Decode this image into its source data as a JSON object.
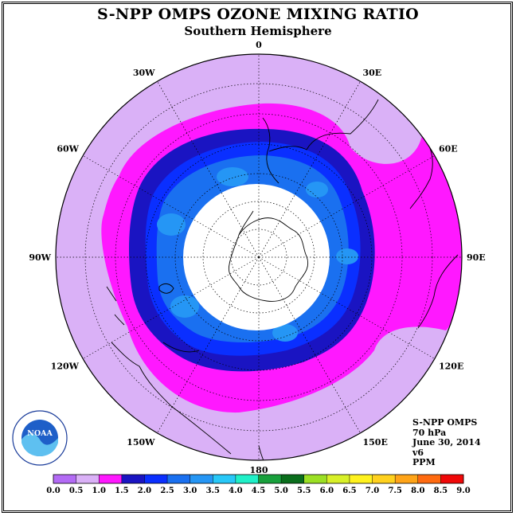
{
  "title": "S-NPP OMPS OZONE MIXING RATIO",
  "subtitle": "Southern Hemisphere",
  "info": {
    "instrument": "S-NPP OMPS",
    "level": "70 hPa",
    "date": "June 30, 2014",
    "version": "v6",
    "units": "PPM"
  },
  "logo": {
    "text": "NOAA"
  },
  "longitude_labels": [
    {
      "label": "90W",
      "lon": -90
    },
    {
      "label": "60W",
      "lon": -60
    },
    {
      "label": "30W",
      "lon": -30
    },
    {
      "label": "0",
      "lon": 0
    },
    {
      "label": "30E",
      "lon": 30
    },
    {
      "label": "60E",
      "lon": 60
    },
    {
      "label": "90E",
      "lon": 90
    },
    {
      "label": "120E",
      "lon": 120
    },
    {
      "label": "150E",
      "lon": 150
    },
    {
      "label": "180",
      "lon": 180
    },
    {
      "label": "150W",
      "lon": -150
    },
    {
      "label": "120W",
      "lon": -120
    }
  ],
  "colorbar": {
    "ticks": [
      "0.0",
      "0.5",
      "1.0",
      "1.5",
      "2.0",
      "2.5",
      "3.0",
      "3.5",
      "4.0",
      "4.5",
      "5.0",
      "5.5",
      "6.0",
      "6.5",
      "7.0",
      "7.5",
      "8.0",
      "8.5",
      "9.0"
    ],
    "colors": [
      "#b36bf5",
      "#dab1f7",
      "#ff18ff",
      "#1a14c2",
      "#0a2fff",
      "#1a70f0",
      "#2596f5",
      "#28c8f8",
      "#20f0c8",
      "#18a03c",
      "#0a6e1c",
      "#9be024",
      "#d8f028",
      "#fff21e",
      "#ffd11e",
      "#ffa418",
      "#ff6a10",
      "#f00808",
      "#7a4a28"
    ]
  },
  "chart_data": {
    "type": "heatmap",
    "title": "S-NPP OMPS OZONE MIXING RATIO",
    "subtitle": "Southern Hemisphere",
    "projection": "south-polar-stereographic",
    "units": "PPM",
    "value_range": [
      0.0,
      9.0
    ],
    "bins": [
      0.0,
      0.5,
      1.0,
      1.5,
      2.0,
      2.5,
      3.0,
      3.5,
      4.0,
      4.5,
      5.0,
      5.5,
      6.0,
      6.5,
      7.0,
      7.5,
      8.0,
      8.5,
      9.0
    ],
    "no_data_region": "polar night cap",
    "bands": [
      {
        "range": [
          0.5,
          1.0
        ],
        "where": "outer mid-latitudes"
      },
      {
        "range": [
          1.0,
          1.5
        ],
        "where": "ring around the vortex"
      },
      {
        "range": [
          1.5,
          2.0
        ],
        "where": "vortex edge"
      },
      {
        "range": [
          2.0,
          2.5
        ],
        "where": "inside vortex"
      },
      {
        "range": [
          2.5,
          3.0
        ],
        "where": "inside vortex"
      },
      {
        "range": [
          3.0,
          3.5
        ],
        "where": "patches inside vortex"
      }
    ]
  }
}
